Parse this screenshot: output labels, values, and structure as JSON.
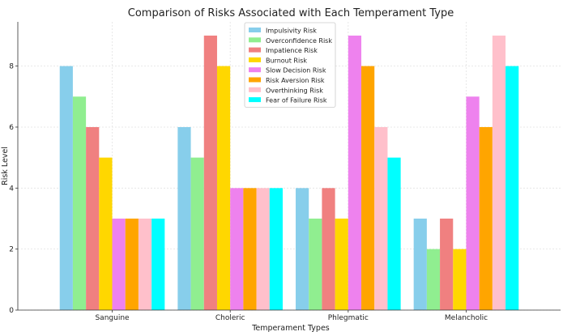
{
  "chart_data": {
    "type": "bar",
    "title": "Comparison of Risks Associated with Each Temperament Type",
    "xlabel": "Temperament Types",
    "ylabel": "Risk Level",
    "ylim": [
      0,
      9.45
    ],
    "yticks": [
      0,
      2,
      4,
      6,
      8
    ],
    "grid": true,
    "legend_position": "top-center",
    "categories": [
      "Sanguine",
      "Choleric",
      "Phlegmatic",
      "Melancholic"
    ],
    "series": [
      {
        "name": "Impulsivity Risk",
        "color": "#87ceeb",
        "values": [
          8,
          6,
          4,
          3
        ]
      },
      {
        "name": "Overconfidence Risk",
        "color": "#90ee90",
        "values": [
          7,
          5,
          3,
          2
        ]
      },
      {
        "name": "Impatience Risk",
        "color": "#f08080",
        "values": [
          6,
          9,
          4,
          3
        ]
      },
      {
        "name": "Burnout Risk",
        "color": "#ffd700",
        "values": [
          5,
          8,
          3,
          2
        ]
      },
      {
        "name": "Slow Decision Risk",
        "color": "#ee82ee",
        "values": [
          3,
          4,
          9,
          7
        ]
      },
      {
        "name": "Risk Aversion Risk",
        "color": "#ffa500",
        "values": [
          3,
          4,
          8,
          6
        ]
      },
      {
        "name": "Overthinking Risk",
        "color": "#ffc0cb",
        "values": [
          3,
          4,
          6,
          9
        ]
      },
      {
        "name": "Fear of Failure Risk",
        "color": "#00ffff",
        "values": [
          3,
          4,
          5,
          8
        ]
      }
    ]
  }
}
